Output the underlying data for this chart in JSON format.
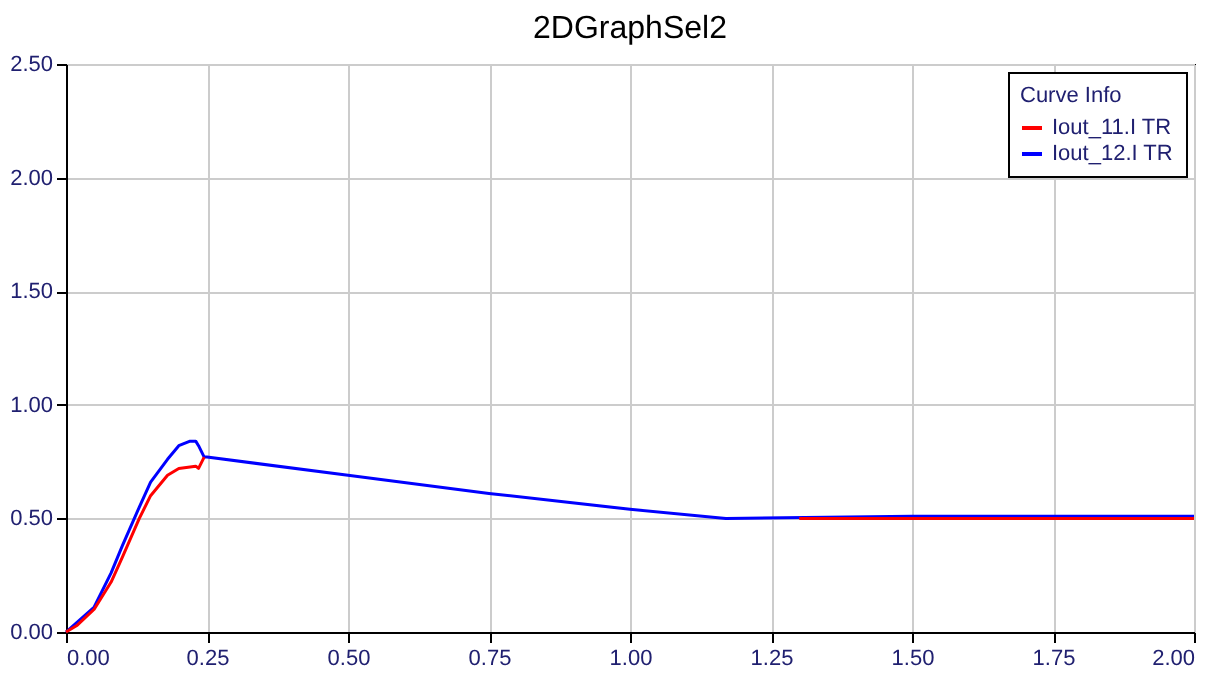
{
  "chart_data": {
    "type": "line",
    "title": "2DGraphSel2",
    "legend_title": "Curve Info",
    "legend": "top right",
    "grid": true,
    "line_style": "solid",
    "xlim": [
      0,
      2
    ],
    "xticks": [
      {
        "value": 0,
        "label": "0.00"
      },
      {
        "value": 0.25,
        "label": "0.25"
      },
      {
        "value": 0.5,
        "label": "0.50"
      },
      {
        "value": 0.75,
        "label": "0.75"
      },
      {
        "value": 1,
        "label": "1.00"
      },
      {
        "value": 1.25,
        "label": "1.25"
      },
      {
        "value": 1.5,
        "label": "1.50"
      },
      {
        "value": 1.75,
        "label": "1.75"
      },
      {
        "value": 2,
        "label": "2.00"
      }
    ],
    "ylim": [
      0,
      2.5
    ],
    "yticks": [
      {
        "value": 0,
        "label": "0.00"
      },
      {
        "value": 0.5,
        "label": "0.50"
      },
      {
        "value": 1,
        "label": "1.00"
      },
      {
        "value": 1.5,
        "label": "1.50"
      },
      {
        "value": 2,
        "label": "2.00"
      },
      {
        "value": 2.5,
        "label": "2.50"
      }
    ],
    "series": [
      {
        "name": "Iout_11.I TR",
        "color": "#ff0000",
        "x": [
          0,
          0.02,
          0.05,
          0.08,
          0.1,
          0.13,
          0.15,
          0.18,
          0.2,
          0.23,
          0.235,
          0.245,
          0.26,
          1.3,
          1.5,
          1.75,
          2.0
        ],
        "values": [
          0,
          0.03,
          0.1,
          0.22,
          0.33,
          0.5,
          0.6,
          0.69,
          0.72,
          0.73,
          0.72,
          0.77,
          null,
          0.5,
          0.5,
          0.5,
          0.5
        ]
      },
      {
        "name": "Iout_12.I TR",
        "color": "#0000ff",
        "x": [
          0,
          0.05,
          0.08,
          0.1,
          0.13,
          0.15,
          0.18,
          0.2,
          0.22,
          0.23,
          0.235,
          0.245,
          0.25,
          0.5,
          0.75,
          1.0,
          1.17,
          1.5,
          1.75,
          2.0
        ],
        "values": [
          0,
          0.11,
          0.26,
          0.38,
          0.55,
          0.66,
          0.76,
          0.82,
          0.84,
          0.84,
          0.82,
          0.77,
          0.77,
          0.69,
          0.61,
          0.54,
          0.5,
          0.51,
          0.51,
          0.51
        ]
      }
    ]
  }
}
